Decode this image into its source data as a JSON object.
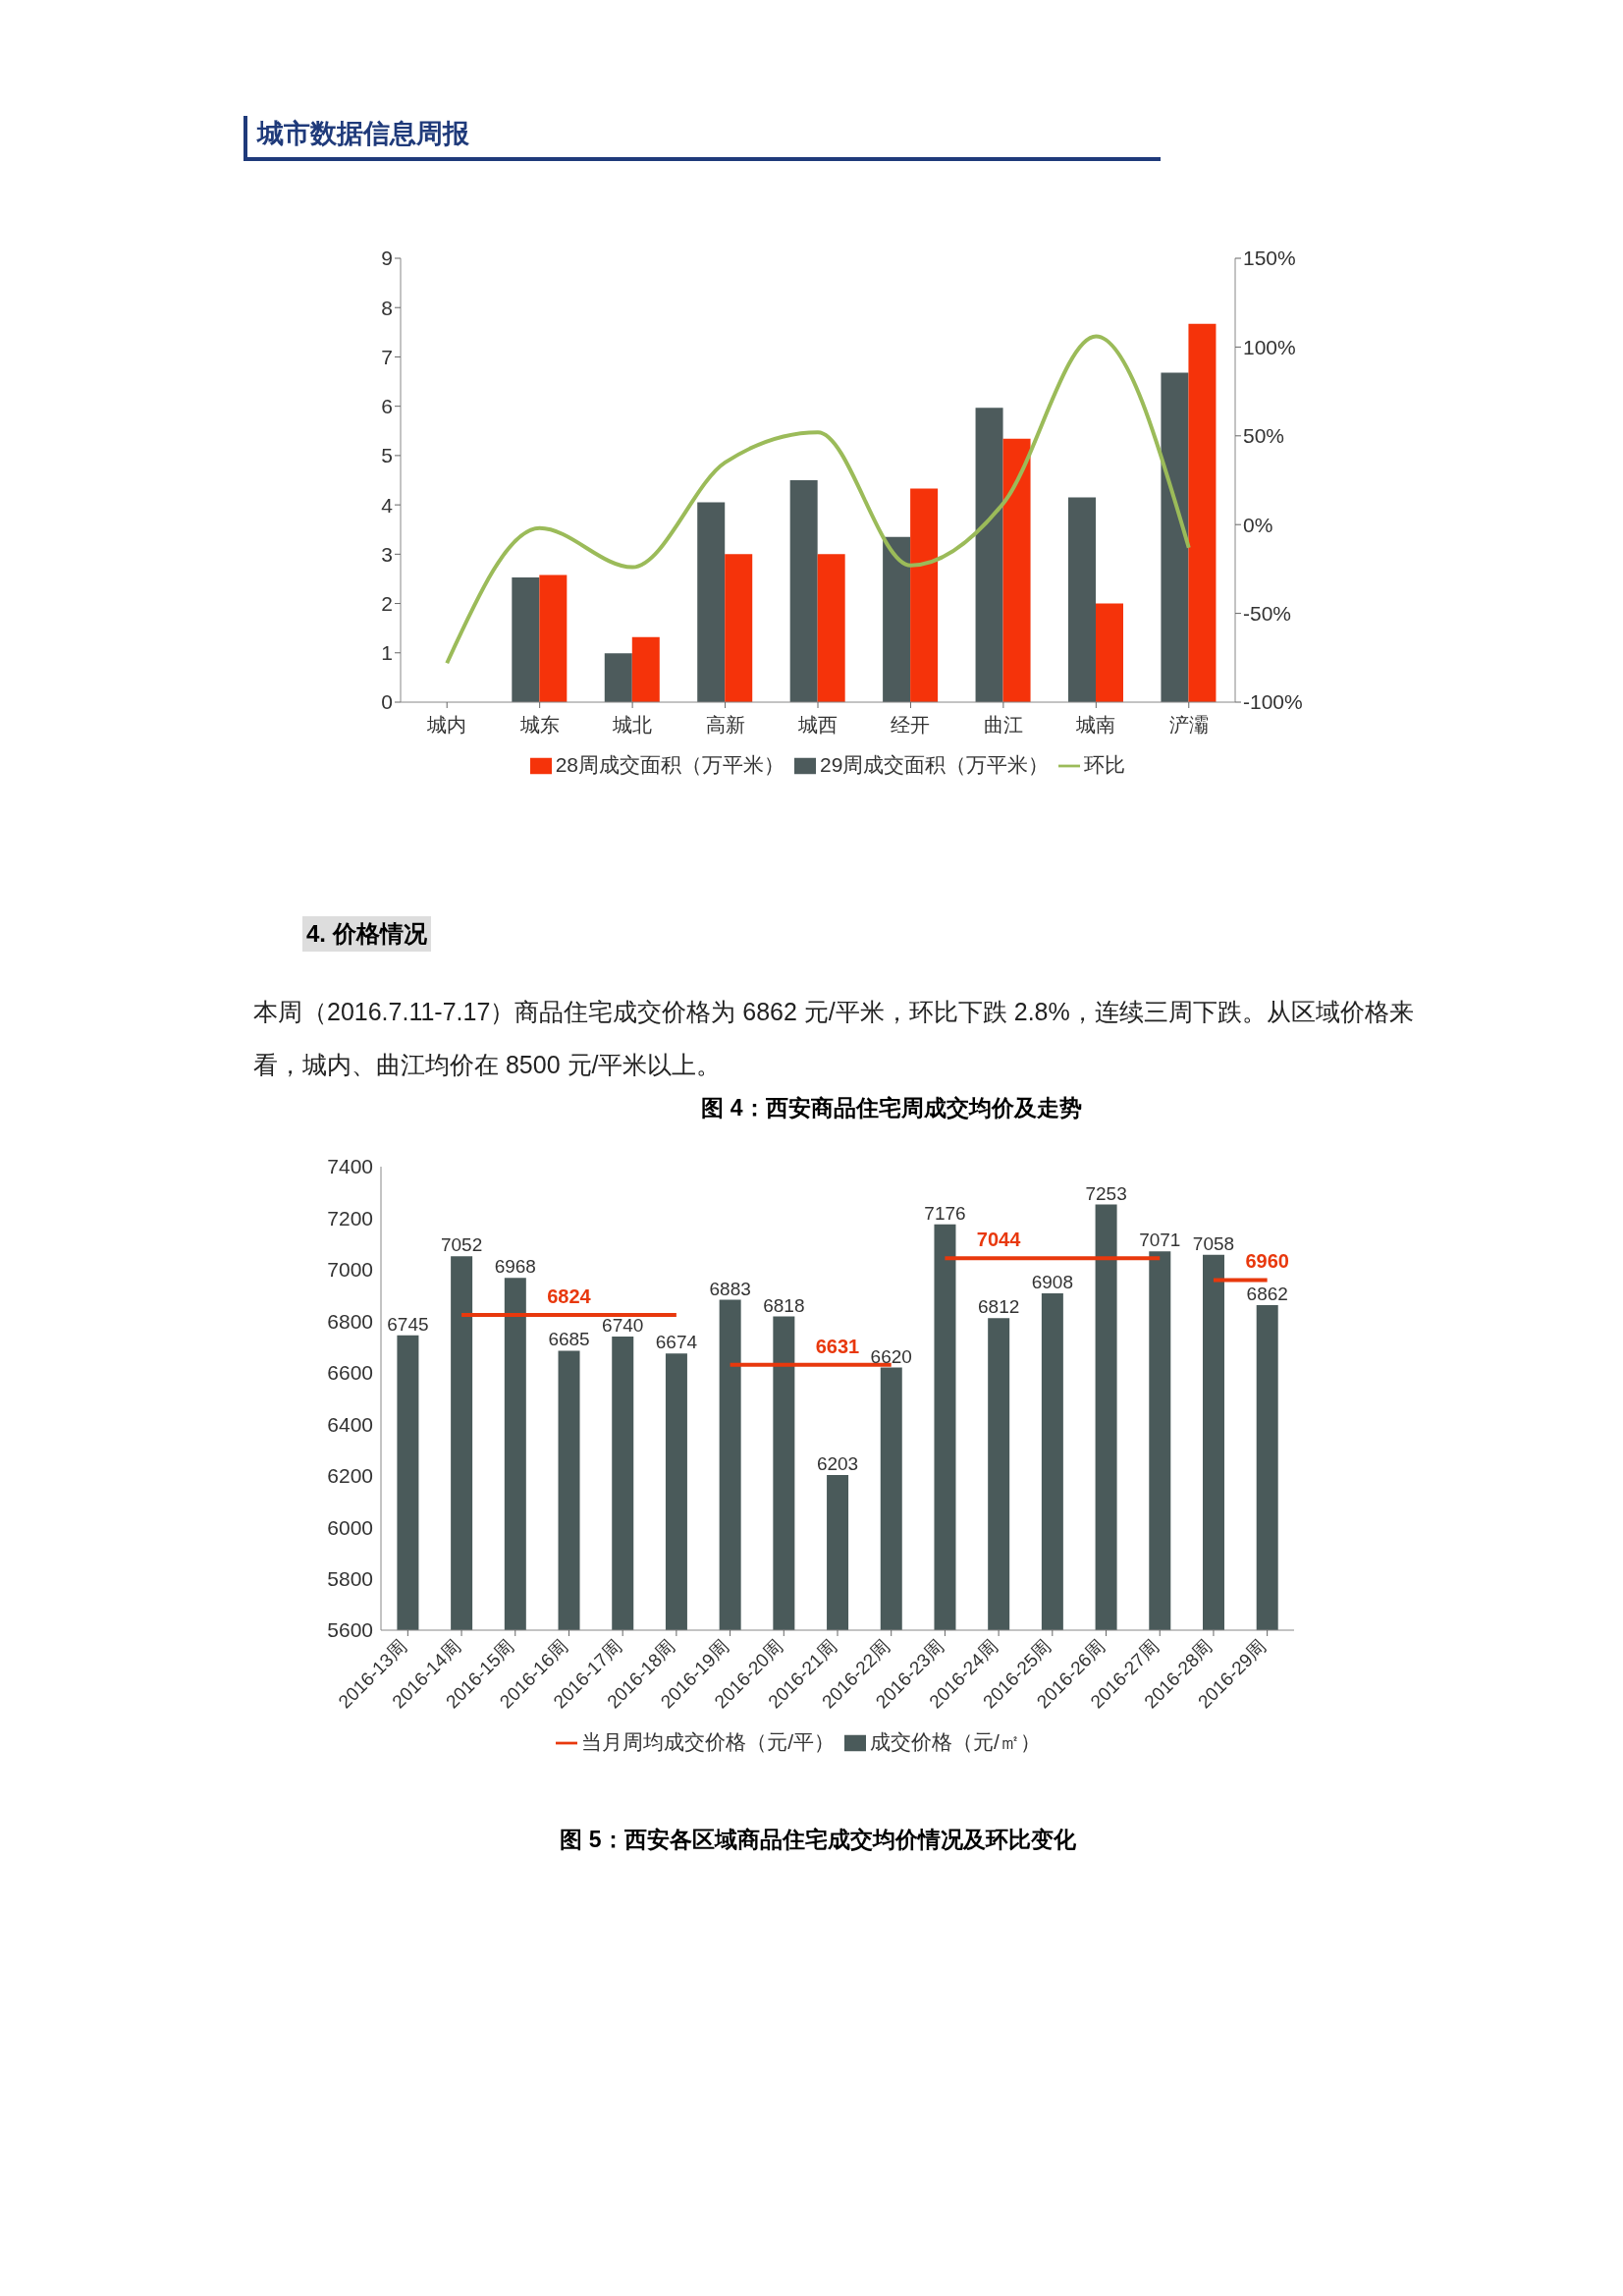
{
  "chart_data": [
    {
      "type": "bar",
      "annotations": [
        "城市数据信息周报"
      ],
      "categories": [
        "城内",
        "城东",
        "城北",
        "高新",
        "城西",
        "经开",
        "曲江",
        "城南",
        "浐灞"
      ],
      "series": [
        {
          "name": "29周成交面积（万平米）",
          "color": "#4d5b5c",
          "values": [
            0,
            2.53,
            0.99,
            4.05,
            4.5,
            3.35,
            5.97,
            4.15,
            6.68
          ]
        },
        {
          "name": "28周成交面积（万平米）",
          "color": "#f5330a",
          "values": [
            0,
            2.58,
            1.32,
            3.0,
            3.0,
            4.33,
            5.34,
            2.0,
            7.67
          ]
        },
        {
          "name": "环比",
          "type": "line",
          "axis": "y2",
          "color": "#9bbb59",
          "values": [
            -78,
            -2,
            -24,
            35,
            52,
            -23,
            12,
            106,
            -13
          ]
        }
      ],
      "ylim": [
        0,
        9
      ],
      "yticks": [
        0,
        1,
        2,
        3,
        4,
        5,
        6,
        7,
        8,
        9
      ],
      "y2lim": [
        -100,
        150
      ],
      "y2ticks": [
        {
          "value": -100,
          "label": "-100%"
        },
        {
          "value": -50,
          "label": "-50%"
        },
        {
          "value": 0,
          "label": "0%"
        },
        {
          "value": 50,
          "label": "50%"
        },
        {
          "value": 100,
          "label": "100%"
        },
        {
          "value": 150,
          "label": "150%"
        }
      ],
      "legend": "bottom",
      "marker": "none"
    },
    {
      "type": "bar",
      "title": "图 4：西安商品住宅周成交均价及走势",
      "annotations": [
        "4. 价格情况",
        "本周（2016.7.11-7.17）商品住宅成交价格为 6862 元/平米，环比下跌 2.8%，连续三周下跌。从区域价格来看，城内、曲江均价在 8500 元/平米以上。",
        "图 5：西安各区域商品住宅成交均价情况及环比变化"
      ],
      "categories": [
        "2016-13周",
        "2016-14周",
        "2016-15周",
        "2016-16周",
        "2016-17周",
        "2016-18周",
        "2016-19周",
        "2016-20周",
        "2016-21周",
        "2016-22周",
        "2016-23周",
        "2016-24周",
        "2016-25周",
        "2016-26周",
        "2016-27周",
        "2016-28周",
        "2016-29周"
      ],
      "series": [
        {
          "name": "成交价格（元/㎡）",
          "color": "#4a5a5a",
          "values": [
            6745,
            7052,
            6968,
            6685,
            6740,
            6674,
            6883,
            6818,
            6203,
            6620,
            7176,
            6812,
            6908,
            7253,
            7071,
            7058,
            6862
          ]
        },
        {
          "name": "当月周均成交价格（元/平）",
          "type": "line",
          "color": "#e8380d",
          "values": [
            null,
            6824,
            6824,
            6824,
            6824,
            6824,
            null,
            null,
            null,
            null,
            null,
            null,
            null,
            null,
            null,
            null,
            null
          ],
          "value_labels": [
            null,
            null,
            null,
            "6824",
            null,
            null,
            null,
            null,
            null,
            null,
            null,
            null,
            null,
            null,
            null,
            null,
            null
          ]
        },
        {
          "type": "line",
          "color": "#e8380d",
          "values": [
            null,
            null,
            null,
            null,
            null,
            null,
            6631,
            6631,
            6631,
            6631,
            null,
            null,
            null,
            null,
            null,
            null,
            null
          ],
          "value_labels": [
            null,
            null,
            null,
            null,
            null,
            null,
            null,
            null,
            "6631",
            null,
            null,
            null,
            null,
            null,
            null,
            null,
            null
          ]
        },
        {
          "type": "line",
          "color": "#e8380d",
          "values": [
            null,
            null,
            null,
            null,
            null,
            null,
            null,
            null,
            null,
            null,
            7044,
            7044,
            7044,
            7044,
            7044,
            null,
            null
          ],
          "value_labels": [
            null,
            null,
            null,
            null,
            null,
            null,
            null,
            null,
            null,
            null,
            null,
            "7044",
            null,
            null,
            null,
            null,
            null
          ]
        },
        {
          "type": "line",
          "color": "#e8380d",
          "values": [
            null,
            null,
            null,
            null,
            null,
            null,
            null,
            null,
            null,
            null,
            null,
            null,
            null,
            null,
            null,
            6960,
            6960
          ],
          "value_labels": [
            null,
            null,
            null,
            null,
            null,
            null,
            null,
            null,
            null,
            null,
            null,
            null,
            null,
            null,
            null,
            null,
            "6960"
          ]
        }
      ],
      "ylim": [
        5600,
        7400
      ],
      "yticks": [
        5600,
        5800,
        6000,
        6200,
        6400,
        6600,
        6800,
        7000,
        7200,
        7400
      ],
      "data_labels": true,
      "legend": "bottom",
      "marker": "none"
    }
  ]
}
